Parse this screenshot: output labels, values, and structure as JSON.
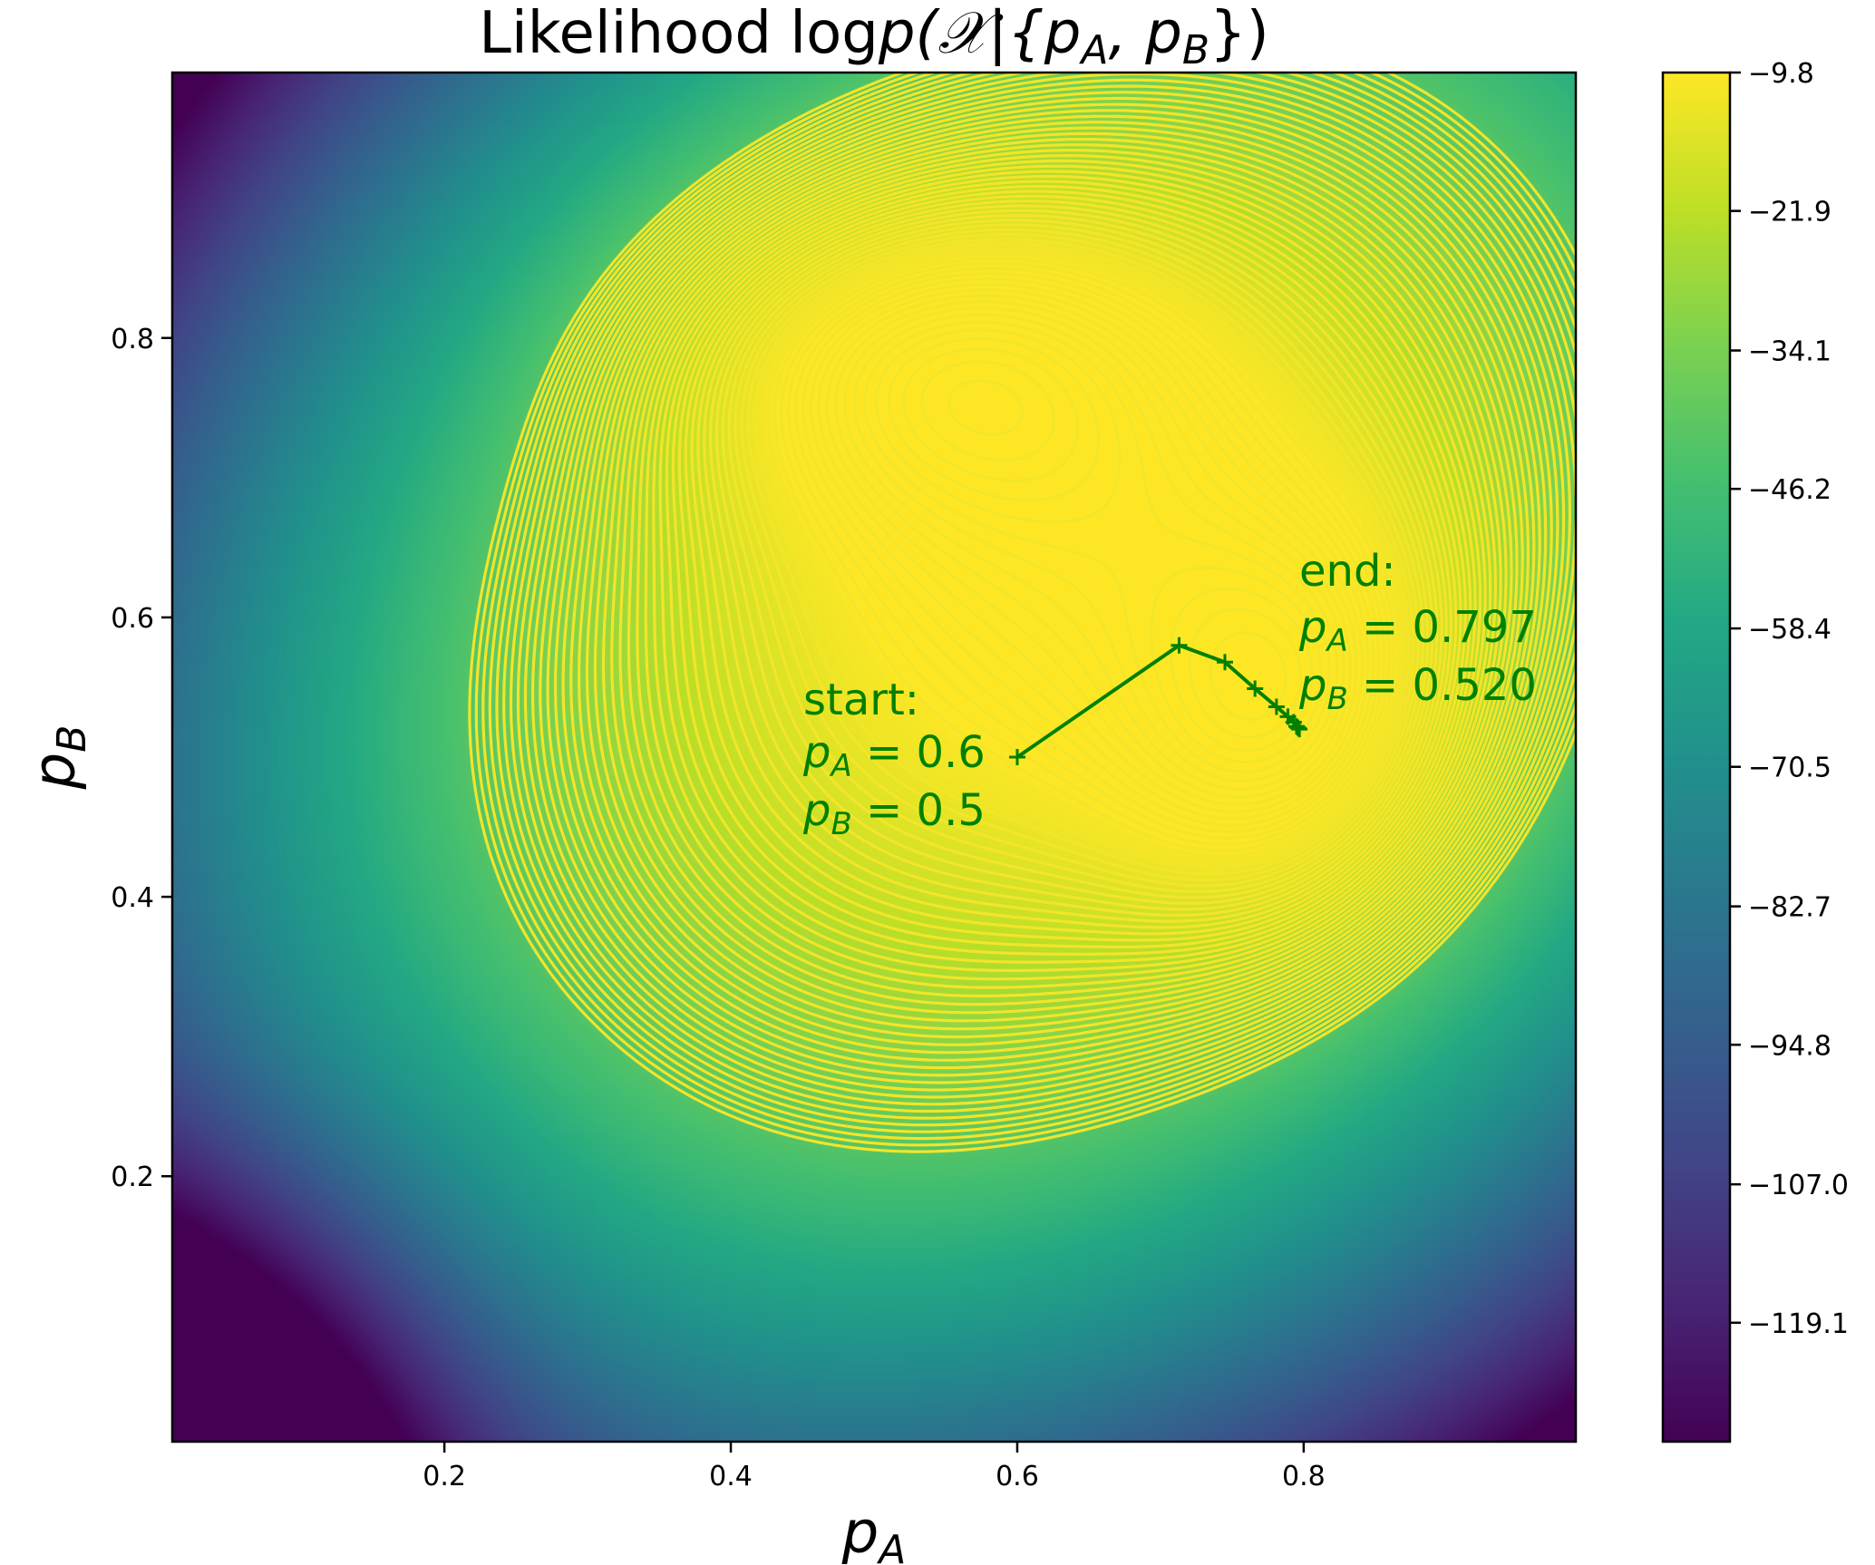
{
  "chart_data": {
    "type": "heatmap",
    "title": "Likelihood log",
    "title_math": "p(𝒳|{p",
    "title_sub_a": "A",
    "title_sep": ", p",
    "title_sub_b": "B",
    "title_end": "})",
    "xlabel": "p",
    "xlabel_sub": "A",
    "ylabel": "p",
    "ylabel_sub": "B",
    "xlim": [
      0.01,
      0.99
    ],
    "ylim": [
      0.01,
      0.99
    ],
    "x_ticks": [
      0.2,
      0.4,
      0.6,
      0.8
    ],
    "x_tick_labels": [
      "0.2",
      "0.4",
      "0.6",
      "0.8"
    ],
    "y_ticks": [
      0.2,
      0.4,
      0.6,
      0.8
    ],
    "y_tick_labels": [
      "0.2",
      "0.4",
      "0.6",
      "0.8"
    ],
    "colormap": "viridis",
    "contour_color": "#f2e52a",
    "path_color": "#008000",
    "colorbar": {
      "min": -129.5,
      "max": -9.8,
      "ticks": [
        -9.8,
        -21.9,
        -34.1,
        -46.2,
        -58.4,
        -70.5,
        -82.7,
        -94.8,
        -107.0,
        -119.1
      ],
      "tick_labels": [
        "−9.8",
        "−21.9",
        "−34.1",
        "−46.2",
        "−58.4",
        "−70.5",
        "−82.7",
        "−94.8",
        "−107.0",
        "−119.1"
      ]
    },
    "path": {
      "x": [
        0.6,
        0.713,
        0.745,
        0.766,
        0.781,
        0.789,
        0.793,
        0.795,
        0.796,
        0.797
      ],
      "y": [
        0.5,
        0.58,
        0.568,
        0.549,
        0.536,
        0.529,
        0.525,
        0.522,
        0.521,
        0.52
      ]
    },
    "annotations": {
      "start": {
        "title": "start:",
        "line1_var": "p",
        "line1_sub": "A",
        "line1_val": " = 0.6",
        "line2_var": "p",
        "line2_sub": "B",
        "line2_val": " = 0.5"
      },
      "end": {
        "title": "end:",
        "line1_var": "p",
        "line1_sub": "A",
        "line1_val": " = 0.797",
        "line2_var": "p",
        "line2_sub": "B",
        "line2_val": " = 0.520"
      }
    }
  }
}
